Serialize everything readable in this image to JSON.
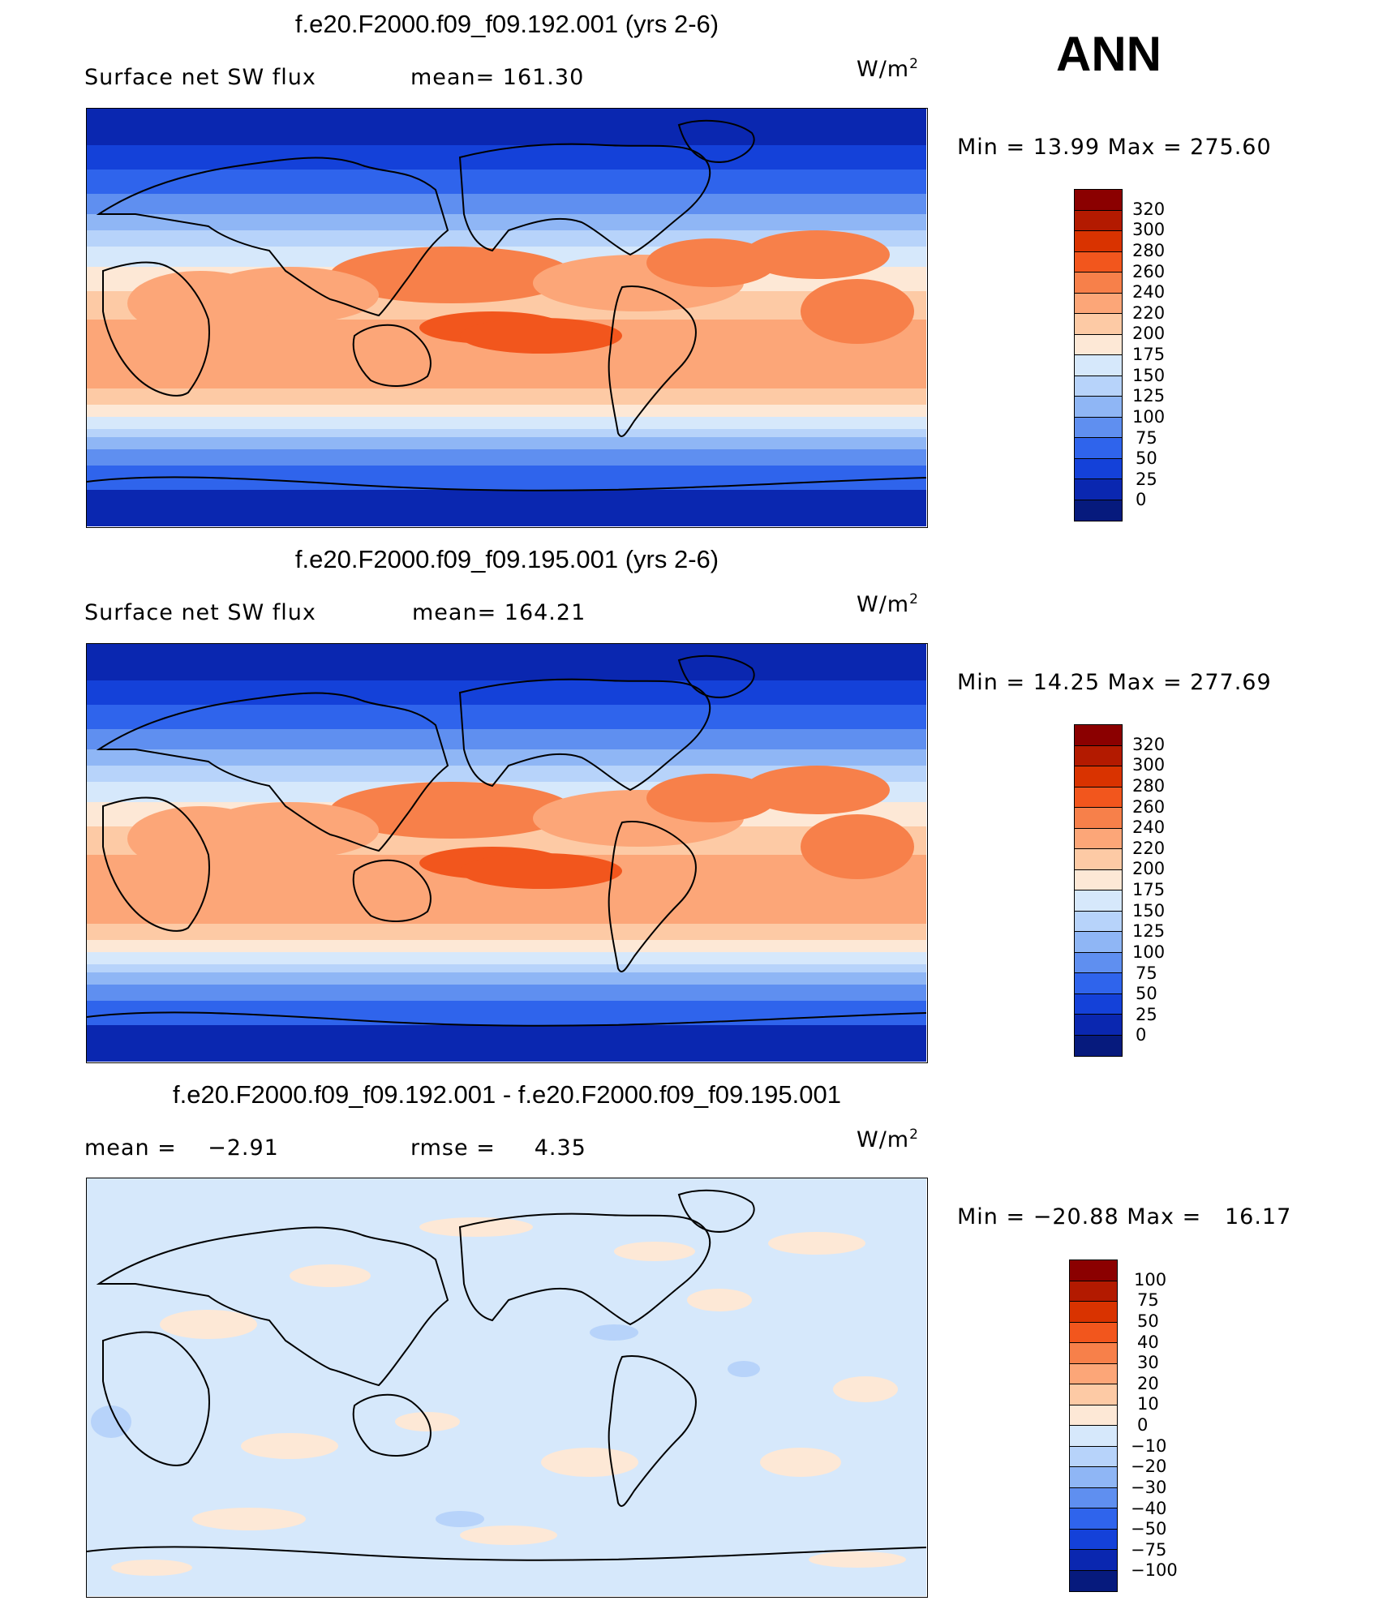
{
  "season": "ANN",
  "units": {
    "base": "W/m",
    "exp": "2"
  },
  "panels": [
    {
      "title": "f.e20.F2000.f09_f09.192.001 (yrs 2-6)",
      "left_label": "Surface net SW flux",
      "right_label": "mean=  161.30",
      "minmax": "Min =   13.99 Max = 275.60",
      "colorbar": [
        "320",
        "300",
        "280",
        "260",
        "240",
        "220",
        "200",
        "175",
        "150",
        "125",
        "100",
        "75",
        "50",
        "25",
        "0"
      ],
      "colors": [
        "#8b0000",
        "#b31a00",
        "#d93300",
        "#f2561d",
        "#f7804a",
        "#fca678",
        "#fdcaa5",
        "#fde8d6",
        "#d6e8fb",
        "#b7d3fa",
        "#8fb6f5",
        "#5f8ff0",
        "#2f64ec",
        "#1441d9",
        "#0a27b0",
        "#061a7d"
      ],
      "field": "abs"
    },
    {
      "title": "f.e20.F2000.f09_f09.195.001 (yrs 2-6)",
      "left_label": "Surface net SW flux",
      "right_label": "mean=  164.21",
      "minmax": "Min =   14.25 Max = 277.69",
      "colorbar": [
        "320",
        "300",
        "280",
        "260",
        "240",
        "220",
        "200",
        "175",
        "150",
        "125",
        "100",
        "75",
        "50",
        "25",
        "0"
      ],
      "colors": [
        "#8b0000",
        "#b31a00",
        "#d93300",
        "#f2561d",
        "#f7804a",
        "#fca678",
        "#fdcaa5",
        "#fde8d6",
        "#d6e8fb",
        "#b7d3fa",
        "#8fb6f5",
        "#5f8ff0",
        "#2f64ec",
        "#1441d9",
        "#0a27b0",
        "#061a7d"
      ],
      "field": "abs"
    },
    {
      "title": "f.e20.F2000.f09_f09.192.001 - f.e20.F2000.f09_f09.195.001",
      "left_label": "mean =    −2.91",
      "right_label": "rmse =     4.35",
      "minmax": "Min = −20.88 Max =   16.17",
      "colorbar": [
        "100",
        "75",
        "50",
        "40",
        "30",
        "20",
        "10",
        "0",
        "−10",
        "−20",
        "−30",
        "−40",
        "−50",
        "−75",
        "−100"
      ],
      "colors": [
        "#8b0000",
        "#b31a00",
        "#d93300",
        "#f2561d",
        "#f7804a",
        "#fca678",
        "#fdcaa5",
        "#fde8d6",
        "#d6e8fb",
        "#b7d3fa",
        "#8fb6f5",
        "#5f8ff0",
        "#2f64ec",
        "#1441d9",
        "#0a27b0",
        "#061a7d"
      ],
      "field": "diff"
    }
  ]
}
